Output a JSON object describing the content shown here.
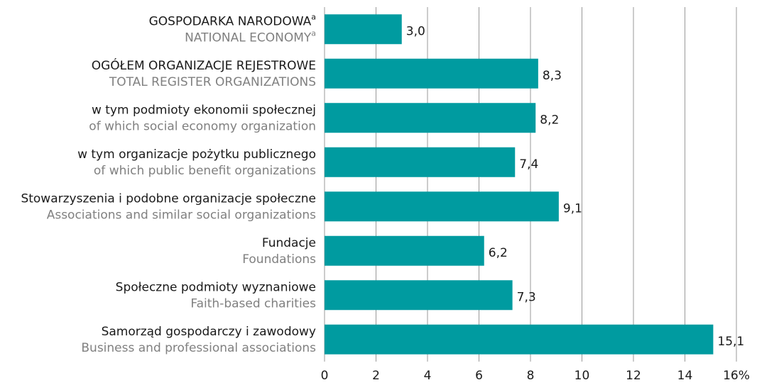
{
  "chart_data": {
    "type": "bar",
    "orientation": "horizontal",
    "categories": [
      "GOSPODARKA NARODOWA",
      "OGÓŁEM ORGANIZACJE REJESTROWE",
      "w tym podmioty ekonomii społecznej",
      "w tym organizacje pożytku publicznego",
      "Stowarzyszenia i podobne organizacje społeczne",
      "Fundacje",
      "Społeczne podmioty wyznaniowe",
      "Samorząd gospodarczy i zawodowy"
    ],
    "categories_en": [
      "NATIONAL ECONOMY",
      "TOTAL REGISTER ORGANIZATIONS",
      "of which social economy organization",
      "of which public benefit organizations",
      "Associations and similar social organizations",
      "Foundations",
      "Faith-based charities",
      "Business and professional associations"
    ],
    "category_notes": [
      "a",
      null,
      null,
      null,
      null,
      null,
      null,
      null
    ],
    "values": [
      3.0,
      8.3,
      8.2,
      7.4,
      9.1,
      6.2,
      7.3,
      15.1
    ],
    "value_labels": [
      "3,0",
      "8,3",
      "8,2",
      "7,4",
      "9,1",
      "6,2",
      "7,3",
      "15,1"
    ],
    "color": "#009ba0",
    "xlim": [
      0,
      16
    ],
    "xticks": [
      0,
      2,
      4,
      6,
      8,
      10,
      12,
      14,
      {
        "value": 16,
        "label": "16%"
      }
    ],
    "grid": true
  }
}
